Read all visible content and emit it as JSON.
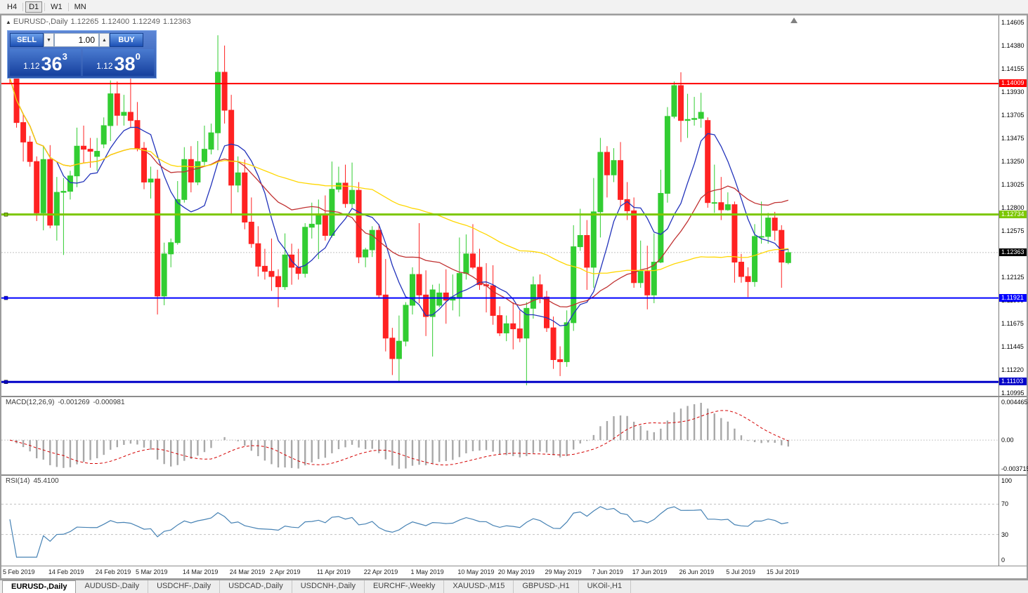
{
  "toolbar": {
    "timeframes": [
      {
        "label": "H4",
        "active": false
      },
      {
        "label": "D1",
        "active": true
      },
      {
        "label": "W1",
        "active": false
      },
      {
        "label": "MN",
        "active": false
      }
    ]
  },
  "icons": {
    "collapse_marker": "▲",
    "shift_marker": "▲",
    "spin_up": "▲",
    "spin_down": "▼"
  },
  "chart": {
    "symbol_title": "EURUSD-,Daily",
    "ohlc_open": "1.12265",
    "ohlc_high": "1.12400",
    "ohlc_low": "1.12249",
    "ohlc_close": "1.12363"
  },
  "trade_panel": {
    "sell_label": "SELL",
    "buy_label": "BUY",
    "volume": "1.00",
    "bid_prefix": "1.12",
    "bid_big": "36",
    "bid_sup": "3",
    "ask_prefix": "1.12",
    "ask_big": "38",
    "ask_sup": "0"
  },
  "chart_data": {
    "type": "candlestick",
    "symbol": "EURUSD-,Daily",
    "y_range": {
      "max": 1.146734,
      "min": 1.109678
    },
    "y_axis_labels": [
      "1.14605",
      "1.14380",
      "1.14155",
      "1.13930",
      "1.13705",
      "1.13475",
      "1.13250",
      "1.13025",
      "1.12800",
      "1.12575",
      "1.12350",
      "1.12125",
      "1.11900",
      "1.11675",
      "1.11445",
      "1.11220",
      "1.10995"
    ],
    "x_axis_labels": [
      {
        "label": "5 Feb 2019",
        "i": 0
      },
      {
        "label": "14 Feb 2019",
        "i": 7
      },
      {
        "label": "24 Feb 2019",
        "i": 14
      },
      {
        "label": "5 Mar 2019",
        "i": 20
      },
      {
        "label": "14 Mar 2019",
        "i": 27
      },
      {
        "label": "24 Mar 2019",
        "i": 34
      },
      {
        "label": "2 Apr 2019",
        "i": 40
      },
      {
        "label": "11 Apr 2019",
        "i": 47
      },
      {
        "label": "22 Apr 2019",
        "i": 54
      },
      {
        "label": "1 May 2019",
        "i": 61
      },
      {
        "label": "10 May 2019",
        "i": 68
      },
      {
        "label": "20 May 2019",
        "i": 74
      },
      {
        "label": "29 May 2019",
        "i": 81
      },
      {
        "label": "7 Jun 2019",
        "i": 88
      },
      {
        "label": "17 Jun 2019",
        "i": 94
      },
      {
        "label": "26 Jun 2019",
        "i": 101
      },
      {
        "label": "5 Jul 2019",
        "i": 108
      },
      {
        "label": "15 Jul 2019",
        "i": 114
      }
    ],
    "colors": {
      "bull": "#32CD32",
      "bear": "#FF2222"
    },
    "ma_lines": [
      {
        "period": 8,
        "color": "#2233BB"
      },
      {
        "period": 21,
        "color": "#C03030"
      },
      {
        "period": 55,
        "color": "#FFD700"
      }
    ],
    "hlines": [
      {
        "price": 1.14009,
        "color": "#FF0000",
        "width": 2,
        "tag": "1.14009",
        "marker": false
      },
      {
        "price": 1.12734,
        "color": "#7CC700",
        "width": 3,
        "tag": "1.12734",
        "marker": true
      },
      {
        "price": 1.11921,
        "color": "#0000FF",
        "width": 2,
        "tag": "1.11921",
        "marker": true
      },
      {
        "price": 1.11103,
        "color": "#0000C8",
        "width": 3,
        "tag": "1.11103",
        "marker": true
      }
    ],
    "current_price": {
      "value": 1.12363,
      "tag": "1.12363",
      "line_color": "#C0C0C0",
      "tag_bg": "#000000"
    },
    "macd": {
      "label": "MACD(12,26,9)",
      "value_main": "-0.001269",
      "value_signal": "-0.000981",
      "axis_top": "0.004465",
      "axis_zero": "0.00",
      "axis_bottom": "-0.003715",
      "fast": 12,
      "slow": 26,
      "signal": 9,
      "hist_color": "#A8A8A8",
      "signal_color": "#D40000"
    },
    "rsi": {
      "label": "RSI(14)",
      "value": "45.4100",
      "period": 14,
      "axis_labels": [
        "100",
        "70",
        "30",
        "0"
      ],
      "levels": [
        70,
        30
      ],
      "line_color": "#4682B4",
      "level_color": "#C0C0C0"
    },
    "candles": [
      [
        1.1434,
        1.14375,
        1.1401,
        1.14065
      ],
      [
        1.14065,
        1.141,
        1.1358,
        1.1363
      ],
      [
        1.1363,
        1.1371,
        1.1325,
        1.1344
      ],
      [
        1.1344,
        1.135,
        1.132,
        1.1325
      ],
      [
        1.1325,
        1.133,
        1.1267,
        1.1275
      ],
      [
        1.1275,
        1.134,
        1.1258,
        1.1327
      ],
      [
        1.1327,
        1.1341,
        1.126,
        1.1263
      ],
      [
        1.1263,
        1.131,
        1.1248,
        1.1295
      ],
      [
        1.1295,
        1.1309,
        1.1234,
        1.1296
      ],
      [
        1.1296,
        1.1316,
        1.1288,
        1.1311
      ],
      [
        1.1311,
        1.1358,
        1.13,
        1.134
      ],
      [
        1.134,
        1.136,
        1.1324,
        1.1337
      ],
      [
        1.1337,
        1.1348,
        1.1319,
        1.1335
      ],
      [
        1.133,
        1.1348,
        1.1316,
        1.1335
      ],
      [
        1.1342,
        1.1368,
        1.1338,
        1.136
      ],
      [
        1.136,
        1.1404,
        1.1345,
        1.1391
      ],
      [
        1.1391,
        1.1403,
        1.136,
        1.137
      ],
      [
        1.137,
        1.139,
        1.136,
        1.1373
      ],
      [
        1.1373,
        1.1408,
        1.1358,
        1.1365
      ],
      [
        1.1365,
        1.1383,
        1.1335,
        1.1338
      ],
      [
        1.1338,
        1.1344,
        1.1298,
        1.1305
      ],
      [
        1.1305,
        1.132,
        1.1289,
        1.1308
      ],
      [
        1.1308,
        1.1317,
        1.1176,
        1.1194
      ],
      [
        1.1194,
        1.1246,
        1.1185,
        1.1235
      ],
      [
        1.1235,
        1.125,
        1.1222,
        1.1246
      ],
      [
        1.1246,
        1.1306,
        1.1244,
        1.1288
      ],
      [
        1.1288,
        1.1339,
        1.1285,
        1.1327
      ],
      [
        1.1327,
        1.134,
        1.1295,
        1.1305
      ],
      [
        1.1305,
        1.1345,
        1.1302,
        1.1325
      ],
      [
        1.1325,
        1.136,
        1.132,
        1.1337
      ],
      [
        1.1337,
        1.1362,
        1.1332,
        1.1353
      ],
      [
        1.1353,
        1.1448,
        1.1336,
        1.1412
      ],
      [
        1.1412,
        1.1438,
        1.1362,
        1.1375
      ],
      [
        1.1375,
        1.139,
        1.1273,
        1.1302
      ],
      [
        1.1302,
        1.133,
        1.1295,
        1.1314
      ],
      [
        1.1314,
        1.1327,
        1.1259,
        1.1266
      ],
      [
        1.1266,
        1.129,
        1.1241,
        1.1245
      ],
      [
        1.1245,
        1.1262,
        1.1213,
        1.1223
      ],
      [
        1.1223,
        1.124,
        1.121,
        1.1218
      ],
      [
        1.1218,
        1.125,
        1.1199,
        1.1213
      ],
      [
        1.1213,
        1.122,
        1.1183,
        1.1203
      ],
      [
        1.1203,
        1.1255,
        1.12,
        1.1234
      ],
      [
        1.1234,
        1.1245,
        1.1205,
        1.1222
      ],
      [
        1.1222,
        1.124,
        1.121,
        1.1216
      ],
      [
        1.1216,
        1.1265,
        1.1212,
        1.1261
      ],
      [
        1.1261,
        1.1285,
        1.125,
        1.1264
      ],
      [
        1.1264,
        1.1288,
        1.123,
        1.1274
      ],
      [
        1.1274,
        1.1292,
        1.1248,
        1.1253
      ],
      [
        1.1253,
        1.1325,
        1.1251,
        1.1298
      ],
      [
        1.1298,
        1.132,
        1.1295,
        1.1304
      ],
      [
        1.1304,
        1.1322,
        1.128,
        1.1284
      ],
      [
        1.1284,
        1.1324,
        1.128,
        1.1297
      ],
      [
        1.1297,
        1.1305,
        1.1226,
        1.1232
      ],
      [
        1.1232,
        1.1241,
        1.1222,
        1.1239
      ],
      [
        1.1239,
        1.1262,
        1.1232,
        1.1258
      ],
      [
        1.1258,
        1.1264,
        1.1192,
        1.1195
      ],
      [
        1.1195,
        1.123,
        1.114,
        1.1153
      ],
      [
        1.1153,
        1.1163,
        1.1117,
        1.1133
      ],
      [
        1.1133,
        1.1175,
        1.1111,
        1.115
      ],
      [
        1.115,
        1.1188,
        1.1145,
        1.1185
      ],
      [
        1.1185,
        1.1222,
        1.1176,
        1.1215
      ],
      [
        1.1215,
        1.1265,
        1.1187,
        1.1195
      ],
      [
        1.1195,
        1.1219,
        1.1155,
        1.1174
      ],
      [
        1.1174,
        1.1205,
        1.1135,
        1.12
      ],
      [
        1.1185,
        1.1206,
        1.1183,
        1.1197
      ],
      [
        1.1197,
        1.122,
        1.1167,
        1.119
      ],
      [
        1.119,
        1.1215,
        1.118,
        1.1193
      ],
      [
        1.1193,
        1.1251,
        1.1174,
        1.1216
      ],
      [
        1.1216,
        1.1254,
        1.121,
        1.1235
      ],
      [
        1.1235,
        1.1264,
        1.122,
        1.1222
      ],
      [
        1.1222,
        1.124,
        1.12,
        1.1205
      ],
      [
        1.1205,
        1.1226,
        1.1178,
        1.1204
      ],
      [
        1.1204,
        1.1224,
        1.1166,
        1.1175
      ],
      [
        1.1175,
        1.1184,
        1.1155,
        1.1158
      ],
      [
        1.1158,
        1.1175,
        1.115,
        1.1167
      ],
      [
        1.1167,
        1.1188,
        1.1142,
        1.1162
      ],
      [
        1.1162,
        1.118,
        1.1149,
        1.1153
      ],
      [
        1.1153,
        1.1188,
        1.1107,
        1.1182
      ],
      [
        1.1182,
        1.1213,
        1.1172,
        1.1205
      ],
      [
        1.1205,
        1.1215,
        1.1187,
        1.1193
      ],
      [
        1.1193,
        1.1199,
        1.1159,
        1.1163
      ],
      [
        1.1163,
        1.1174,
        1.1123,
        1.1132
      ],
      [
        1.1132,
        1.1145,
        1.1116,
        1.113
      ],
      [
        1.113,
        1.118,
        1.1125,
        1.1168
      ],
      [
        1.1168,
        1.1263,
        1.116,
        1.1242
      ],
      [
        1.1242,
        1.1279,
        1.1238,
        1.1253
      ],
      [
        1.1253,
        1.1268,
        1.12,
        1.1222
      ],
      [
        1.1222,
        1.1309,
        1.1202,
        1.1276
      ],
      [
        1.1276,
        1.1348,
        1.1251,
        1.1334
      ],
      [
        1.1334,
        1.134,
        1.129,
        1.1312
      ],
      [
        1.1312,
        1.1338,
        1.1305,
        1.1326
      ],
      [
        1.1326,
        1.1344,
        1.1282,
        1.1288
      ],
      [
        1.1288,
        1.1305,
        1.1268,
        1.1277
      ],
      [
        1.1277,
        1.129,
        1.1202,
        1.1207
      ],
      [
        1.1207,
        1.1248,
        1.1202,
        1.1218
      ],
      [
        1.1218,
        1.1243,
        1.1181,
        1.1195
      ],
      [
        1.1195,
        1.1255,
        1.1187,
        1.1227
      ],
      [
        1.1227,
        1.1317,
        1.1226,
        1.1294
      ],
      [
        1.1294,
        1.1378,
        1.1285,
        1.1369
      ],
      [
        1.1369,
        1.1403,
        1.1367,
        1.1399
      ],
      [
        1.1399,
        1.1412,
        1.1344,
        1.1365
      ],
      [
        1.1365,
        1.1391,
        1.1348,
        1.1366
      ],
      [
        1.1366,
        1.1388,
        1.136,
        1.1367
      ],
      [
        1.1367,
        1.1392,
        1.1358,
        1.1373
      ],
      [
        1.1365,
        1.1368,
        1.128,
        1.1285
      ],
      [
        1.1285,
        1.1322,
        1.1275,
        1.1285
      ],
      [
        1.1285,
        1.131,
        1.1268,
        1.1278
      ],
      [
        1.1278,
        1.1295,
        1.1277,
        1.1283
      ],
      [
        1.1283,
        1.1286,
        1.1207,
        1.1227
      ],
      [
        1.1227,
        1.1235,
        1.1207,
        1.1213
      ],
      [
        1.1213,
        1.1222,
        1.1193,
        1.1208
      ],
      [
        1.1208,
        1.1264,
        1.1203,
        1.1252
      ],
      [
        1.1252,
        1.1286,
        1.1245,
        1.1252
      ],
      [
        1.1252,
        1.1275,
        1.1245,
        1.127
      ],
      [
        1.127,
        1.1276,
        1.1248,
        1.1258
      ],
      [
        1.1258,
        1.1263,
        1.1202,
        1.1227
      ],
      [
        1.12265,
        1.124,
        1.12249,
        1.12363
      ]
    ]
  },
  "tabs": [
    {
      "label": "EURUSD-,Daily",
      "active": true
    },
    {
      "label": "AUDUSD-,Daily",
      "active": false
    },
    {
      "label": "USDCHF-,Daily",
      "active": false
    },
    {
      "label": "USDCAD-,Daily",
      "active": false
    },
    {
      "label": "USDCNH-,Daily",
      "active": false
    },
    {
      "label": "EURCHF-,Weekly",
      "active": false
    },
    {
      "label": "XAUUSD-,M15",
      "active": false
    },
    {
      "label": "GBPUSD-,H1",
      "active": false
    },
    {
      "label": "UKOil-,H1",
      "active": false
    }
  ]
}
